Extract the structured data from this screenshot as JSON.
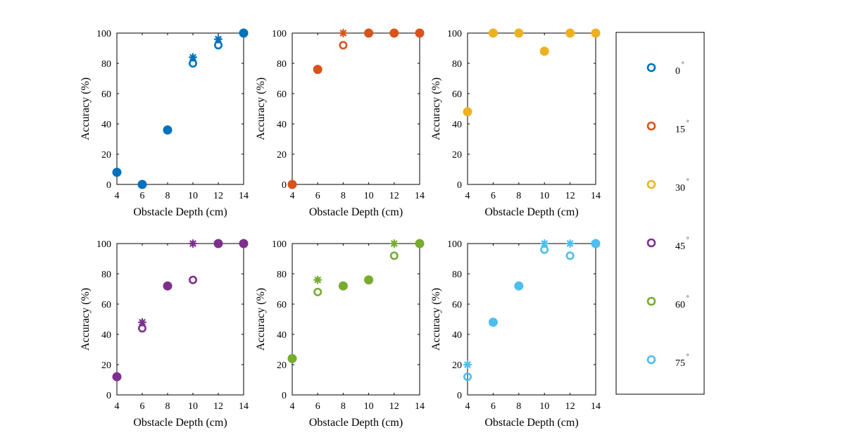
{
  "chart_data": [
    {
      "type": "scatter",
      "color": "#0072BD",
      "xlabel": "Obstacle Depth (cm)",
      "ylabel": "Accuracy (%)",
      "xlim": [
        4,
        14
      ],
      "ylim": [
        0,
        100
      ],
      "xticks": [
        "4",
        "6",
        "8",
        "10",
        "12",
        "14"
      ],
      "yticks": [
        "0",
        "20",
        "40",
        "60",
        "80",
        "100"
      ],
      "series": [
        {
          "marker": "filled-circle",
          "x": [
            4,
            6,
            8,
            14
          ],
          "y": [
            8,
            0,
            36,
            100
          ]
        },
        {
          "marker": "open-circle",
          "x": [
            10,
            12
          ],
          "y": [
            80,
            92
          ]
        },
        {
          "marker": "asterisk",
          "x": [
            10,
            12
          ],
          "y": [
            84,
            96
          ]
        }
      ]
    },
    {
      "type": "scatter",
      "color": "#D95319",
      "xlabel": "Obstacle Depth (cm)",
      "ylabel": "Accuracy (%)",
      "xlim": [
        4,
        14
      ],
      "ylim": [
        0,
        100
      ],
      "xticks": [
        "4",
        "6",
        "8",
        "10",
        "12",
        "14"
      ],
      "yticks": [
        "0",
        "20",
        "40",
        "60",
        "80",
        "100"
      ],
      "series": [
        {
          "marker": "filled-circle",
          "x": [
            4,
            6,
            10,
            12,
            14
          ],
          "y": [
            0,
            76,
            100,
            100,
            100
          ]
        },
        {
          "marker": "open-circle",
          "x": [
            8
          ],
          "y": [
            92
          ]
        },
        {
          "marker": "asterisk",
          "x": [
            8
          ],
          "y": [
            100
          ]
        }
      ]
    },
    {
      "type": "scatter",
      "color": "#EDB120",
      "xlabel": "Obstacle Depth (cm)",
      "ylabel": "Accuracy (%)",
      "xlim": [
        4,
        14
      ],
      "ylim": [
        0,
        100
      ],
      "xticks": [
        "4",
        "6",
        "8",
        "10",
        "12",
        "14"
      ],
      "yticks": [
        "0",
        "20",
        "40",
        "60",
        "80",
        "100"
      ],
      "series": [
        {
          "marker": "filled-circle",
          "x": [
            4,
            6,
            8,
            10,
            12,
            14
          ],
          "y": [
            48,
            100,
            100,
            88,
            100,
            100
          ]
        }
      ]
    },
    {
      "type": "scatter",
      "color": "#7E2F8E",
      "xlabel": "Obstacle Depth (cm)",
      "ylabel": "Accuracy (%)",
      "xlim": [
        4,
        14
      ],
      "ylim": [
        0,
        100
      ],
      "xticks": [
        "4",
        "6",
        "8",
        "10",
        "12",
        "14"
      ],
      "yticks": [
        "0",
        "20",
        "40",
        "60",
        "80",
        "100"
      ],
      "series": [
        {
          "marker": "filled-circle",
          "x": [
            4,
            8,
            12,
            14
          ],
          "y": [
            12,
            72,
            100,
            100
          ]
        },
        {
          "marker": "open-circle",
          "x": [
            6,
            10
          ],
          "y": [
            44,
            76
          ]
        },
        {
          "marker": "asterisk",
          "x": [
            6,
            10
          ],
          "y": [
            48,
            100
          ]
        }
      ]
    },
    {
      "type": "scatter",
      "color": "#77AC30",
      "xlabel": "Obstacle Depth (cm)",
      "ylabel": "Accuracy (%)",
      "xlim": [
        4,
        14
      ],
      "ylim": [
        0,
        100
      ],
      "xticks": [
        "4",
        "6",
        "8",
        "10",
        "12",
        "14"
      ],
      "yticks": [
        "0",
        "20",
        "40",
        "60",
        "80",
        "100"
      ],
      "series": [
        {
          "marker": "filled-circle",
          "x": [
            4,
            8,
            10,
            14
          ],
          "y": [
            24,
            72,
            76,
            100
          ]
        },
        {
          "marker": "open-circle",
          "x": [
            6,
            12
          ],
          "y": [
            68,
            92
          ]
        },
        {
          "marker": "asterisk",
          "x": [
            6,
            12
          ],
          "y": [
            76,
            100
          ]
        }
      ]
    },
    {
      "type": "scatter",
      "color": "#4DBEEE",
      "xlabel": "Obstacle Depth (cm)",
      "ylabel": "Accuracy (%)",
      "xlim": [
        4,
        14
      ],
      "ylim": [
        0,
        100
      ],
      "xticks": [
        "4",
        "6",
        "8",
        "10",
        "12",
        "14"
      ],
      "yticks": [
        "0",
        "20",
        "40",
        "60",
        "80",
        "100"
      ],
      "series": [
        {
          "marker": "filled-circle",
          "x": [
            6,
            8,
            14
          ],
          "y": [
            48,
            72,
            100
          ]
        },
        {
          "marker": "open-circle",
          "x": [
            4,
            10,
            12
          ],
          "y": [
            12,
            96,
            92
          ]
        },
        {
          "marker": "asterisk",
          "x": [
            4,
            10,
            12
          ],
          "y": [
            20,
            100,
            100
          ]
        }
      ]
    }
  ],
  "legend": {
    "placement": "right",
    "marker": "open-circle",
    "items": [
      {
        "label": "0",
        "unit": "°",
        "color": "#0072BD"
      },
      {
        "label": "15",
        "unit": "°",
        "color": "#D95319"
      },
      {
        "label": "30",
        "unit": "°",
        "color": "#EDB120"
      },
      {
        "label": "45",
        "unit": "°",
        "color": "#7E2F8E"
      },
      {
        "label": "60",
        "unit": "°",
        "color": "#77AC30"
      },
      {
        "label": "75",
        "unit": "°",
        "color": "#4DBEEE"
      }
    ]
  }
}
